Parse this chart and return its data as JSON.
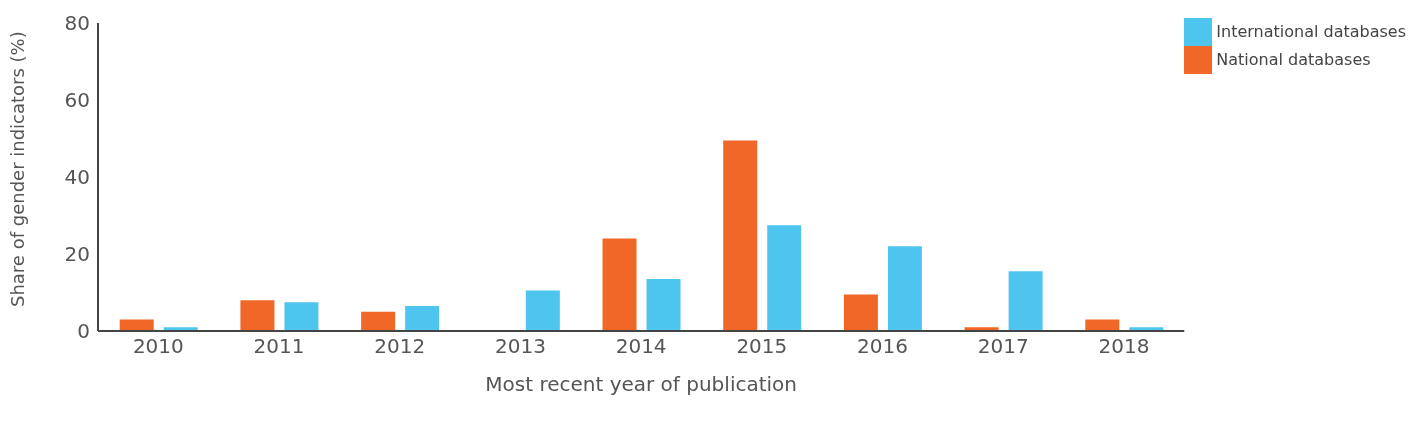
{
  "chart_data": {
    "type": "bar",
    "xlabel": "Most recent year of publication",
    "ylabel": "Share of gender indicators (%)",
    "categories": [
      "2010",
      "2011",
      "2012",
      "2013",
      "2014",
      "2015",
      "2016",
      "2017",
      "2018"
    ],
    "series": [
      {
        "name": "National databases",
        "color": "#f06727",
        "values": [
          3,
          8,
          5,
          0,
          24,
          49.5,
          9.5,
          1,
          3
        ]
      },
      {
        "name": "International databases",
        "color": "#4ec5ee",
        "values": [
          1,
          7.5,
          6.5,
          10.5,
          13.5,
          27.5,
          22,
          15.5,
          1
        ]
      }
    ],
    "ylim": [
      0,
      80
    ],
    "yticks": [
      0,
      20,
      40,
      60,
      80
    ],
    "grid": false,
    "legend": "top right"
  }
}
